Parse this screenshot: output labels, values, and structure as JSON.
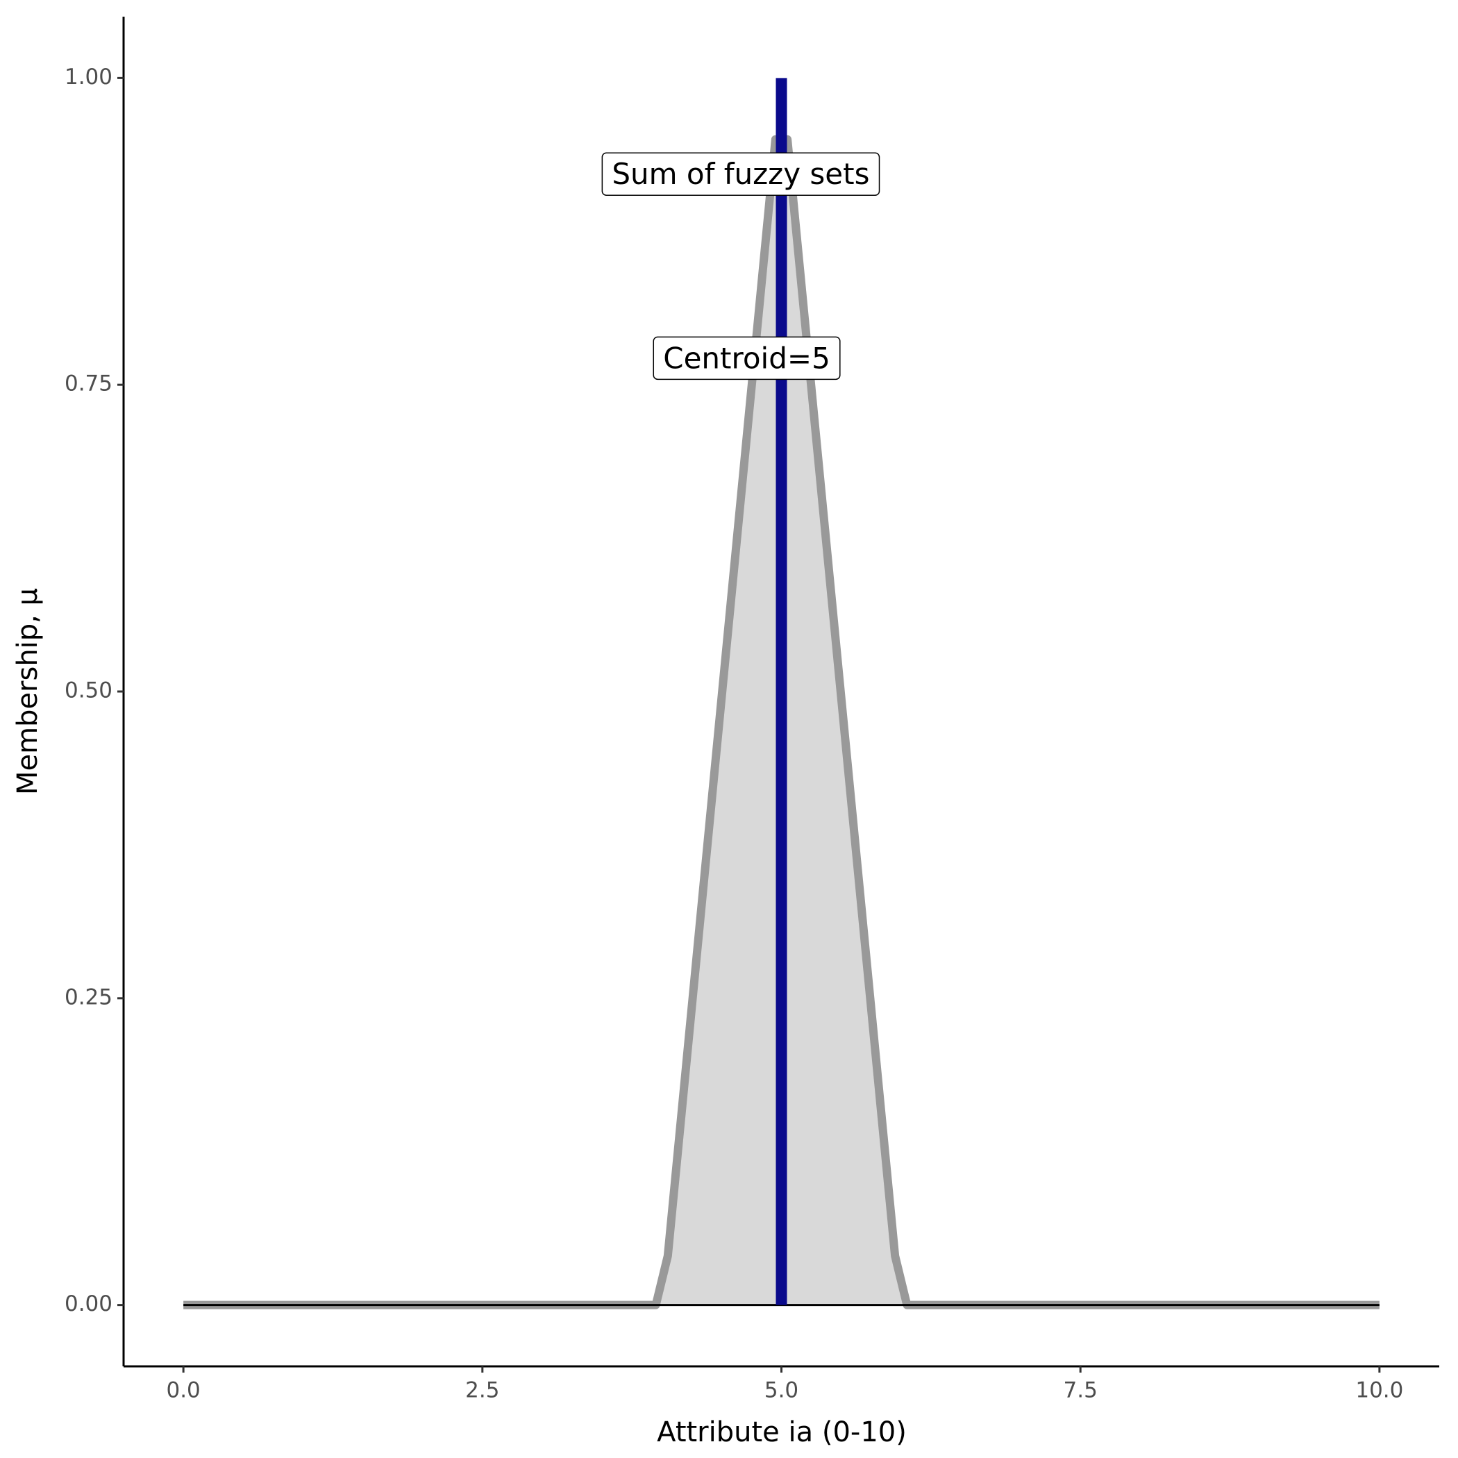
{
  "chart_data": {
    "type": "area",
    "x_label": "Attribute ia (0-10)",
    "y_label": "Membership, μ",
    "x": [
      0,
      3.95,
      4.05,
      4.95,
      5.05,
      5.95,
      6.05,
      10
    ],
    "values": [
      0,
      0,
      0.04,
      0.95,
      0.95,
      0.04,
      0,
      0
    ],
    "fill": "#d9d9d9",
    "color": "#999999",
    "hline": {
      "y": 0,
      "color": "#000000"
    },
    "vline": {
      "x": 5,
      "y": [
        0,
        1
      ],
      "color": "#0a0a8c"
    },
    "annotations": [
      {
        "text": "Sum of fuzzy sets",
        "x": 4.66,
        "y": 0.92
      },
      {
        "text": "Centroid=5",
        "x": 4.71,
        "y": 0.77
      }
    ],
    "xlim": [
      -0.5,
      10.5
    ],
    "ylim": [
      -0.05,
      1.05
    ],
    "xticks": [
      {
        "value": 0,
        "label": "0.0"
      },
      2.5,
      {
        "value": 5,
        "label": "5.0"
      },
      7.5,
      {
        "value": 10,
        "label": "10.0"
      }
    ],
    "yticks": [
      {
        "value": 0,
        "label": "0.00"
      },
      0.25,
      {
        "value": 0.5,
        "label": "0.50"
      },
      0.75,
      {
        "value": 1,
        "label": "1.00"
      }
    ]
  }
}
